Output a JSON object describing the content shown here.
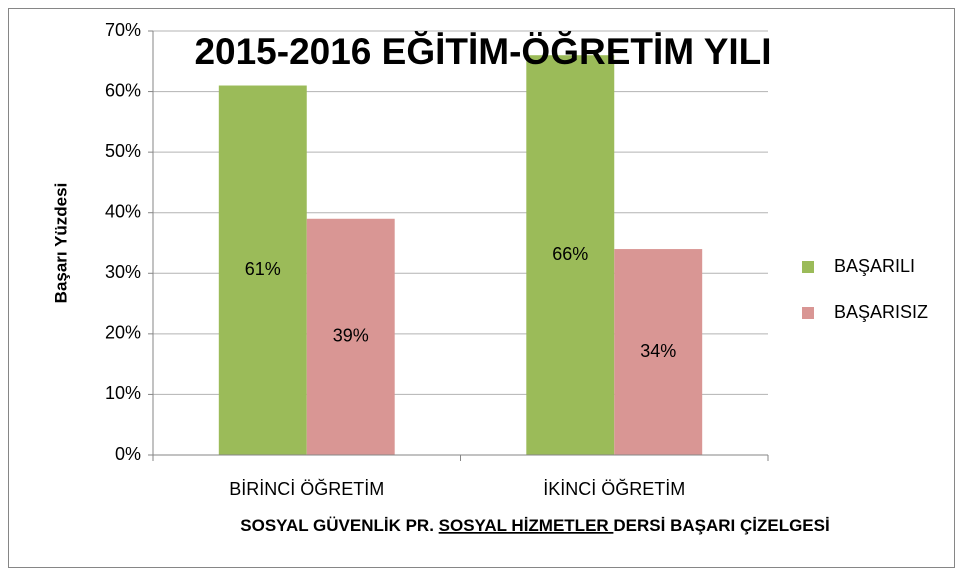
{
  "chart_data": {
    "type": "bar",
    "title": "2015-2016 EĞİTİM-ÖĞRETİM YILI",
    "ylabel": "Başarı Yüzdesi",
    "xlabel": [
      "SOSYAL GÜVENLİK PR. ",
      "SOSYAL HİZMETLER ",
      "DERSİ BAŞARI ÇİZELGESİ"
    ],
    "categories": [
      "BİRİNCİ ÖĞRETİM",
      "İKİNCİ ÖĞRETİM"
    ],
    "series": [
      {
        "name": "BAŞARILI",
        "color": "#9bbb59",
        "values": [
          61,
          66
        ],
        "value_labels": [
          "61%",
          "66%"
        ]
      },
      {
        "name": "BAŞARISIZ",
        "color": "#d99694",
        "values": [
          39,
          34
        ],
        "value_labels": [
          "39%",
          "34%"
        ]
      }
    ],
    "ylim": [
      0,
      70
    ],
    "yticks": [
      {
        "value": 0,
        "label": "0%"
      },
      {
        "value": 10,
        "label": "10%"
      },
      {
        "value": 20,
        "label": "20%"
      },
      {
        "value": 30,
        "label": "30%"
      },
      {
        "value": 40,
        "label": "40%"
      },
      {
        "value": 50,
        "label": "50%"
      },
      {
        "value": 60,
        "label": "60%"
      },
      {
        "value": 70,
        "label": "70%"
      }
    ],
    "grid": true,
    "legend": "right"
  }
}
